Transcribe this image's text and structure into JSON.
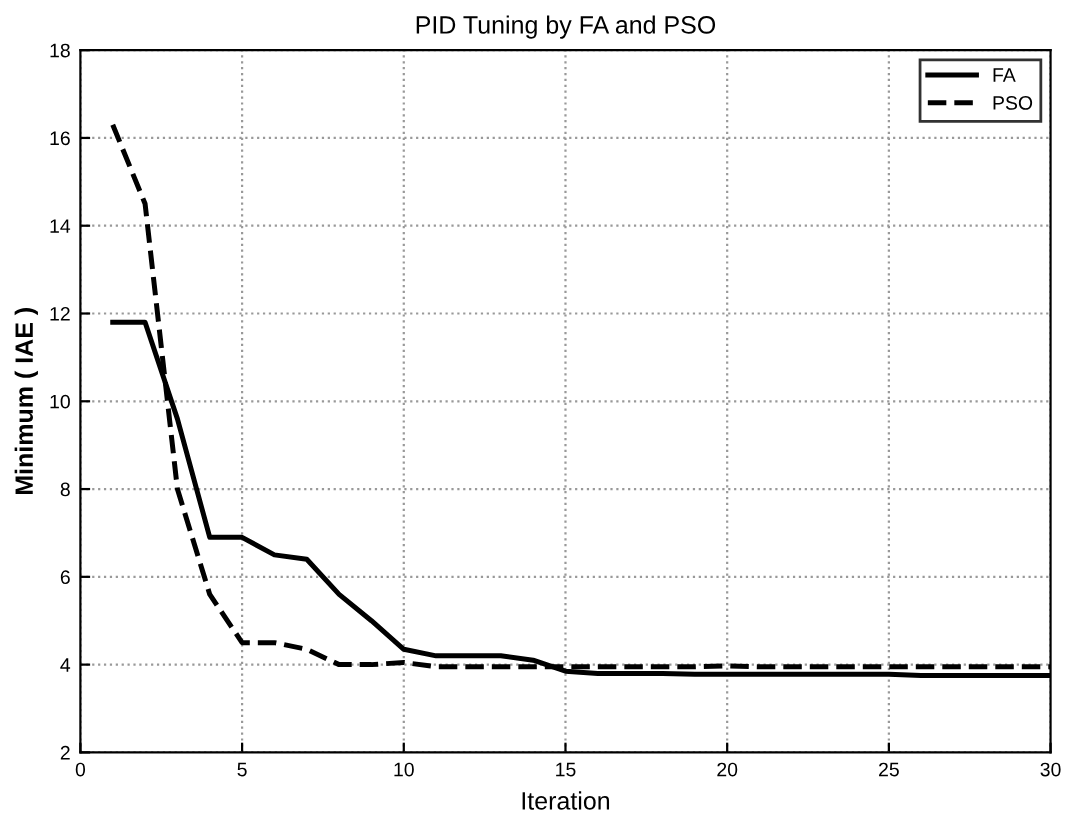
{
  "chart_data": {
    "type": "line",
    "title": "PID Tuning by FA and PSO",
    "xlabel": "Iteration",
    "ylabel": "Minimum ( IAE )",
    "x": [
      1,
      2,
      3,
      4,
      5,
      6,
      7,
      8,
      9,
      10,
      11,
      12,
      13,
      14,
      15,
      16,
      17,
      18,
      19,
      20,
      21,
      22,
      23,
      24,
      25,
      26,
      27,
      28,
      29,
      30
    ],
    "series": [
      {
        "name": "FA",
        "color": "#000000",
        "line_style": "solid",
        "values": [
          11.8,
          11.8,
          9.6,
          6.9,
          6.9,
          6.5,
          6.4,
          5.6,
          5.0,
          4.35,
          4.2,
          4.2,
          4.2,
          4.1,
          3.85,
          3.8,
          3.8,
          3.8,
          3.78,
          3.78,
          3.78,
          3.78,
          3.78,
          3.78,
          3.78,
          3.75,
          3.75,
          3.75,
          3.75,
          3.75
        ]
      },
      {
        "name": "PSO",
        "color": "#000000",
        "line_style": "dashed",
        "values": [
          16.3,
          14.5,
          8.0,
          5.6,
          4.5,
          4.5,
          4.35,
          4.0,
          4.0,
          4.05,
          3.95,
          3.95,
          3.95,
          3.95,
          3.95,
          3.95,
          3.95,
          3.95,
          3.95,
          3.97,
          3.95,
          3.95,
          3.95,
          3.95,
          3.95,
          3.95,
          3.95,
          3.95,
          3.95,
          3.95
        ]
      }
    ],
    "xlim": [
      0,
      30
    ],
    "xticks": [
      0,
      5,
      10,
      15,
      20,
      25,
      30
    ],
    "ylim": [
      2,
      18
    ],
    "yticks": [
      2,
      4,
      6,
      8,
      10,
      12,
      14,
      16,
      18
    ],
    "grid": true,
    "legend": "top right"
  }
}
